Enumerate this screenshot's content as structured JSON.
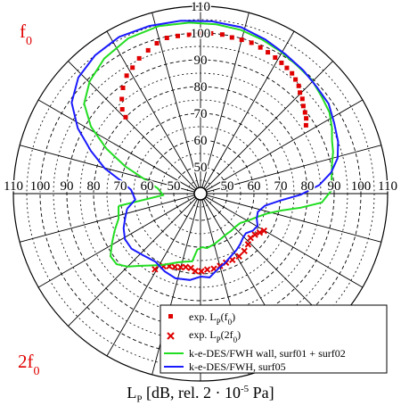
{
  "chart_data": {
    "type": "polar-line",
    "radial_ticks": [
      "40",
      "50",
      "60",
      "70",
      "80",
      "90",
      "100",
      "110"
    ],
    "rlim": [
      40,
      110
    ],
    "angle_grid_step_deg": 15,
    "corner_labels": {
      "top_left": "f",
      "top_left_sub": "0",
      "bottom_left": "2f",
      "bottom_left_sub": "0"
    },
    "xlabel": {
      "prefix": "L",
      "sub": "P",
      "mid": " [dB, rel. 2 · 10",
      "sup": "-5",
      "suffix": " Pa]"
    },
    "legend": [
      {
        "name_main": "exp. L",
        "name_sub": "P",
        "name_tail": "(f",
        "name_sub2": "0",
        "name_end": ")",
        "marker": "square",
        "color": "#e00000"
      },
      {
        "name_main": "exp. L",
        "name_sub": "P",
        "name_tail": "(2f",
        "name_sub2": "0",
        "name_end": ")",
        "marker": "cross",
        "color": "#e00000"
      },
      {
        "name_main": "k-e-DES/FWH wall, surf01 + surf02",
        "marker": "line",
        "color": "#22dd22"
      },
      {
        "name_main": "k-e-DES/FWH, surf05",
        "marker": "line",
        "color": "#1a1aff"
      }
    ],
    "series": [
      {
        "key": "exp_f0",
        "color": "#e00000",
        "marker": "square",
        "points": [
          [
            -44.4,
            80.0
          ],
          [
            -42.9,
            83.0
          ],
          [
            -39.8,
            86.0
          ],
          [
            -36.3,
            89.0
          ],
          [
            -32.1,
            92.0
          ],
          [
            -28.4,
            93.5
          ],
          [
            -24.4,
            95.5
          ],
          [
            -20.1,
            97.0
          ],
          [
            -16.2,
            98.5
          ],
          [
            -12.2,
            99.5
          ],
          [
            -8.2,
            99.5
          ],
          [
            -4.1,
            99.5
          ],
          [
            -0.2,
            100.0
          ],
          [
            3.8,
            100.0
          ],
          [
            7.8,
            100.0
          ],
          [
            11.4,
            99.5
          ],
          [
            15.0,
            99.5
          ],
          [
            18.7,
            99.5
          ],
          [
            22.3,
            99.0
          ],
          [
            25.5,
            98.5
          ],
          [
            28.8,
            98.0
          ],
          [
            31.8,
            97.5
          ],
          [
            34.5,
            97.0
          ],
          [
            37.3,
            96.5
          ],
          [
            39.8,
            95.5
          ],
          [
            42.4,
            94.5
          ],
          [
            44.6,
            93.0
          ],
          [
            47.1,
            92.0
          ],
          [
            49.6,
            90.5
          ],
          [
            52.2,
            89.5
          ],
          [
            54.6,
            88.5
          ],
          [
            57.1,
            87.0
          ]
        ]
      },
      {
        "key": "exp_2f0",
        "color": "#e00000",
        "marker": "cross",
        "points": [
          [
            -148.9,
            73.0
          ],
          [
            -152.9,
            70.5
          ],
          [
            -156.7,
            69.5
          ],
          [
            -160.7,
            69.0
          ],
          [
            -164.9,
            68.5
          ],
          [
            -168.6,
            68.0
          ],
          [
            -172.6,
            68.0
          ],
          [
            -176.1,
            69.0
          ],
          [
            179.4,
            69.0
          ],
          [
            174.9,
            68.5
          ],
          [
            169.9,
            68.5
          ],
          [
            164.9,
            68.0
          ],
          [
            159.7,
            67.5
          ],
          [
            154.3,
            67.5
          ],
          [
            148.4,
            67.5
          ],
          [
            142.6,
            67.0
          ],
          [
            136.8,
            66.0
          ],
          [
            131.5,
            65.0
          ],
          [
            127.0,
            65.5
          ],
          [
            123.3,
            66.5
          ],
          [
            120.3,
            67.5
          ]
        ]
      },
      {
        "key": "green",
        "color": "#22dd22",
        "marker": "line",
        "points": [
          [
            -98.6,
            71.0
          ],
          [
            -92.3,
            54.0
          ],
          [
            -83.2,
            56.0
          ],
          [
            -76.1,
            61.0
          ],
          [
            -70.1,
            70.0
          ],
          [
            -64.5,
            79.0
          ],
          [
            -58.6,
            88.0
          ],
          [
            -52.3,
            95.0
          ],
          [
            -44.6,
            99.0
          ],
          [
            -35.5,
            102.0
          ],
          [
            -25.0,
            104.0
          ],
          [
            -14.0,
            104.5
          ],
          [
            -3.8,
            104.0
          ],
          [
            5.3,
            103.5
          ],
          [
            13.7,
            103.0
          ],
          [
            21.7,
            102.0
          ],
          [
            29.2,
            101.0
          ],
          [
            36.8,
            100.0
          ],
          [
            44.3,
            99.5
          ],
          [
            51.5,
            98.0
          ],
          [
            57.8,
            97.0
          ],
          [
            63.4,
            95.0
          ],
          [
            68.2,
            93.0
          ],
          [
            72.5,
            92.0
          ],
          [
            77.0,
            90.5
          ],
          [
            82.5,
            89.5
          ],
          [
            88.6,
            89.0
          ],
          [
            94.2,
            85.5
          ],
          [
            97.9,
            78.0
          ],
          [
            101.7,
            71.0
          ],
          [
            106.6,
            66.0
          ],
          [
            112.2,
            63.0
          ],
          [
            119.4,
            60.5
          ],
          [
            126.4,
            58.5
          ],
          [
            133.9,
            58.0
          ],
          [
            140.7,
            58.0
          ],
          [
            147.6,
            58.0
          ],
          [
            155.3,
            58.5
          ],
          [
            164.2,
            59.5
          ],
          [
            173.2,
            60.5
          ],
          [
            178.2,
            60.0
          ],
          [
            -176.7,
            61.0
          ],
          [
            -173.0,
            65.5
          ],
          [
            -167.5,
            66.0
          ],
          [
            -161.9,
            67.0
          ],
          [
            -156.7,
            68.5
          ],
          [
            -151.1,
            70.5
          ],
          [
            -145.7,
            72.5
          ],
          [
            -140.4,
            75.0
          ],
          [
            -135.1,
            78.5
          ],
          [
            -130.0,
            81.0
          ],
          [
            -124.8,
            81.0
          ],
          [
            -119.3,
            78.0
          ],
          [
            -113.4,
            75.0
          ],
          [
            -106.9,
            72.0
          ],
          [
            -98.6,
            71.0
          ]
        ]
      },
      {
        "key": "blue",
        "color": "#1a1aff",
        "marker": "line",
        "points": [
          [
            -101.6,
            68.0
          ],
          [
            -95.2,
            64.5
          ],
          [
            -86.9,
            66.0
          ],
          [
            -81.0,
            70.0
          ],
          [
            -75.3,
            77.0
          ],
          [
            -68.7,
            84.0
          ],
          [
            -62.0,
            92.0
          ],
          [
            -54.8,
            99.0
          ],
          [
            -46.5,
            103.0
          ],
          [
            -37.4,
            105.0
          ],
          [
            -27.5,
            106.0
          ],
          [
            -17.0,
            105.5
          ],
          [
            -6.5,
            105.0
          ],
          [
            3.8,
            104.5
          ],
          [
            13.7,
            104.0
          ],
          [
            22.8,
            102.5
          ],
          [
            31.4,
            101.0
          ],
          [
            39.8,
            100.0
          ],
          [
            47.4,
            99.0
          ],
          [
            55.0,
            98.5
          ],
          [
            62.3,
            96.5
          ],
          [
            69.4,
            95.0
          ],
          [
            75.5,
            93.0
          ],
          [
            80.8,
            89.5
          ],
          [
            85.9,
            84.5
          ],
          [
            90.6,
            77.5
          ],
          [
            94.9,
            70.0
          ],
          [
            100.7,
            64.5
          ],
          [
            107.7,
            62.5
          ],
          [
            113.9,
            63.0
          ],
          [
            119.3,
            64.5
          ],
          [
            125.1,
            64.0
          ],
          [
            131.1,
            62.5
          ],
          [
            136.6,
            63.0
          ],
          [
            141.8,
            64.0
          ],
          [
            147.5,
            65.0
          ],
          [
            154.0,
            66.0
          ],
          [
            160.7,
            67.5
          ],
          [
            167.2,
            69.0
          ],
          [
            173.8,
            71.5
          ],
          [
            179.8,
            71.0
          ],
          [
            -173.0,
            72.5
          ],
          [
            -163.5,
            73.0
          ],
          [
            -155.2,
            72.0
          ],
          [
            -146.5,
            70.5
          ],
          [
            -136.9,
            71.5
          ],
          [
            -128.6,
            73.0
          ],
          [
            -121.1,
            73.0
          ],
          [
            -114.1,
            71.5
          ],
          [
            -107.5,
            69.5
          ],
          [
            -101.6,
            68.0
          ]
        ]
      }
    ]
  }
}
